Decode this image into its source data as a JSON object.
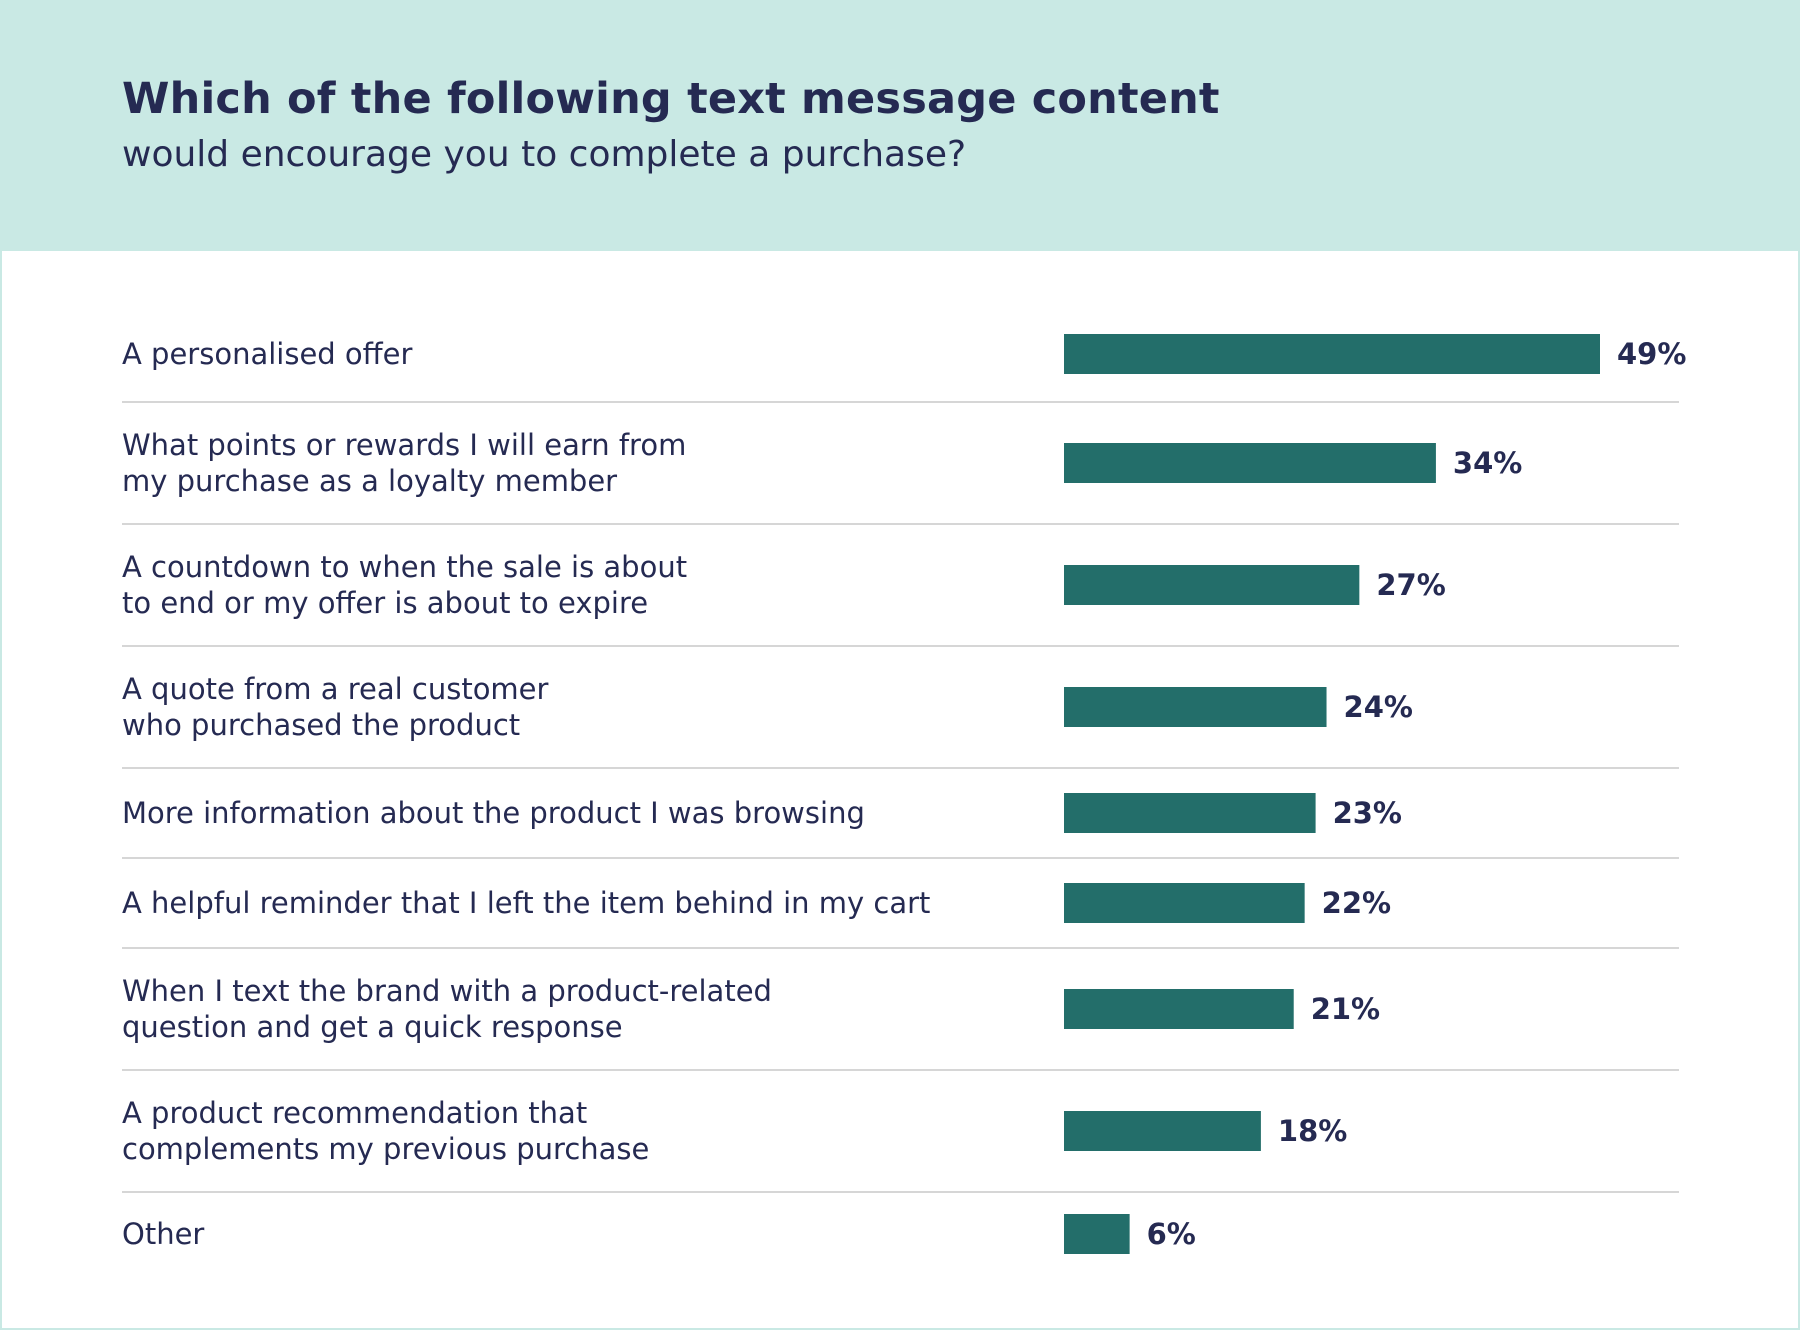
{
  "header": {
    "title": "Which of the following text message content",
    "subtitle": "would encourage you to complete a purchase?"
  },
  "colors": {
    "header_background": "#c9e9e4",
    "bar": "#236e6a",
    "text": "#252a52",
    "divider": "#d6d6d6"
  },
  "chart_data": {
    "type": "bar",
    "orientation": "horizontal",
    "title": "Which of the following text message content",
    "subtitle": "would encourage you to complete a purchase?",
    "categories": [
      [
        "A personalised offer"
      ],
      [
        "What points or rewards I will earn from",
        "my purchase as a loyalty member"
      ],
      [
        "A countdown to when the sale is about",
        "to end or my offer is about to expire"
      ],
      [
        "A quote from a real customer",
        "who purchased the product"
      ],
      [
        "More information about the product I was browsing"
      ],
      [
        "A helpful reminder that I left the item behind in my cart"
      ],
      [
        "When I text the brand with a product-related",
        "question and get a quick response"
      ],
      [
        "A product recommendation that",
        "complements my previous purchase"
      ],
      [
        "Other"
      ]
    ],
    "values": [
      49,
      34,
      27,
      24,
      23,
      22,
      21,
      18,
      6
    ],
    "value_labels": [
      "49%",
      "34%",
      "27%",
      "24%",
      "23%",
      "22%",
      "21%",
      "18%",
      "6%"
    ],
    "unit": "%",
    "xlim": [
      0,
      49
    ],
    "grid": false,
    "legend": "none"
  }
}
